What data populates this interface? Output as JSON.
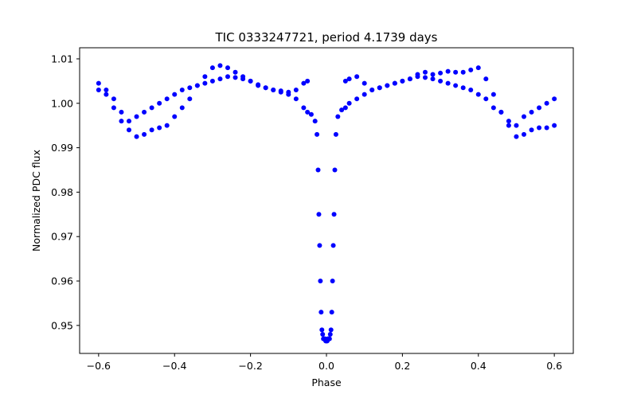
{
  "chart_data": {
    "type": "scatter",
    "title": "TIC 0333247721, period 4.1739 days",
    "xlabel": "Phase",
    "ylabel": "Normalized PDC flux",
    "xlim": [
      -0.65,
      0.65
    ],
    "ylim": [
      0.9437,
      1.0125
    ],
    "xticks": [
      -0.6,
      -0.4,
      -0.2,
      0.0,
      0.2,
      0.4,
      0.6
    ],
    "xtick_labels": [
      "−0.6",
      "−0.4",
      "−0.2",
      "0.0",
      "0.2",
      "0.4",
      "0.6"
    ],
    "yticks": [
      0.95,
      0.96,
      0.97,
      0.98,
      0.99,
      1.0,
      1.01
    ],
    "ytick_labels": [
      "0.95",
      "0.96",
      "0.97",
      "0.98",
      "0.99",
      "1.00",
      "1.01"
    ],
    "grid": false,
    "series_color": "#0000ff",
    "series": [
      {
        "x": [
          -0.6,
          -0.58,
          -0.56,
          -0.54,
          -0.52,
          -0.5,
          -0.48,
          -0.46,
          -0.44,
          -0.42,
          -0.4,
          -0.38,
          -0.36,
          -0.34,
          -0.32,
          -0.3,
          -0.28,
          -0.26,
          -0.24,
          -0.22,
          -0.2,
          -0.18,
          -0.16,
          -0.14,
          -0.12,
          -0.1,
          -0.08,
          -0.06,
          -0.05,
          -0.04,
          -0.03,
          -0.025,
          -0.022,
          -0.02,
          -0.018,
          -0.016,
          -0.014,
          -0.012,
          -0.01,
          -0.008,
          -0.006,
          -0.004,
          -0.002,
          0.0,
          0.002,
          0.004,
          0.006,
          0.008,
          0.01,
          0.012,
          0.014,
          0.016,
          0.018,
          0.02,
          0.022,
          0.025,
          0.03,
          0.04,
          0.05,
          0.06,
          0.08,
          0.1,
          0.12,
          0.14,
          0.16,
          0.18,
          0.2,
          0.22,
          0.24,
          0.26,
          0.28,
          0.3,
          0.32,
          0.34,
          0.36,
          0.38,
          0.4,
          0.42,
          0.44,
          0.46,
          0.48,
          0.5,
          0.52,
          0.54,
          0.56,
          0.58,
          0.6
        ],
        "y": [
          1.003,
          1.002,
          1.001,
          0.998,
          0.996,
          0.997,
          0.998,
          0.999,
          1.0,
          1.001,
          1.002,
          1.003,
          1.0035,
          1.004,
          1.0045,
          1.005,
          1.0055,
          1.006,
          1.0058,
          1.0055,
          1.005,
          1.0042,
          1.0035,
          1.003,
          1.0025,
          1.002,
          1.001,
          0.999,
          0.998,
          0.9975,
          0.996,
          0.993,
          0.985,
          0.975,
          0.968,
          0.96,
          0.953,
          0.949,
          0.948,
          0.947,
          0.947,
          0.947,
          0.9465,
          0.9465,
          0.9465,
          0.947,
          0.947,
          0.947,
          0.948,
          0.949,
          0.953,
          0.96,
          0.968,
          0.975,
          0.985,
          0.993,
          0.997,
          0.9985,
          0.999,
          1.0,
          1.001,
          1.002,
          1.003,
          1.0035,
          1.004,
          1.0045,
          1.005,
          1.0055,
          1.006,
          1.0058,
          1.0055,
          1.005,
          1.0045,
          1.004,
          1.0035,
          1.003,
          1.002,
          1.001,
          0.999,
          0.998,
          0.996,
          0.995,
          0.997,
          0.998,
          0.999,
          1.0,
          1.001
        ]
      },
      {
        "x": [
          -0.6,
          -0.58,
          -0.56,
          -0.54,
          -0.52,
          -0.5,
          -0.48,
          -0.46,
          -0.44,
          -0.42,
          -0.4,
          -0.38,
          -0.36,
          -0.34,
          -0.32,
          -0.3,
          -0.28,
          -0.26,
          -0.24,
          -0.22,
          -0.2,
          -0.18,
          -0.16,
          -0.14,
          -0.12,
          -0.1,
          -0.08,
          -0.06,
          -0.05,
          0.05,
          0.06,
          0.08,
          0.1,
          0.12,
          0.14,
          0.16,
          0.18,
          0.2,
          0.22,
          0.24,
          0.26,
          0.28,
          0.3,
          0.32,
          0.34,
          0.36,
          0.38,
          0.4,
          0.42,
          0.44,
          0.46,
          0.48,
          0.5,
          0.52,
          0.54,
          0.56,
          0.58,
          0.6
        ],
        "y": [
          1.0045,
          1.003,
          0.999,
          0.996,
          0.994,
          0.9925,
          0.993,
          0.994,
          0.9945,
          0.995,
          0.997,
          0.999,
          1.001,
          1.004,
          1.006,
          1.008,
          1.0085,
          1.008,
          1.007,
          1.006,
          1.005,
          1.004,
          1.0035,
          1.003,
          1.0028,
          1.0025,
          1.003,
          1.0045,
          1.005,
          1.005,
          1.0055,
          1.006,
          1.0045,
          1.003,
          1.0035,
          1.004,
          1.0045,
          1.005,
          1.0055,
          1.0065,
          1.007,
          1.0065,
          1.0068,
          1.0072,
          1.007,
          1.007,
          1.0075,
          1.008,
          1.0055,
          1.002,
          0.998,
          0.995,
          0.9925,
          0.993,
          0.994,
          0.9945,
          0.9945,
          0.995
        ]
      }
    ]
  }
}
